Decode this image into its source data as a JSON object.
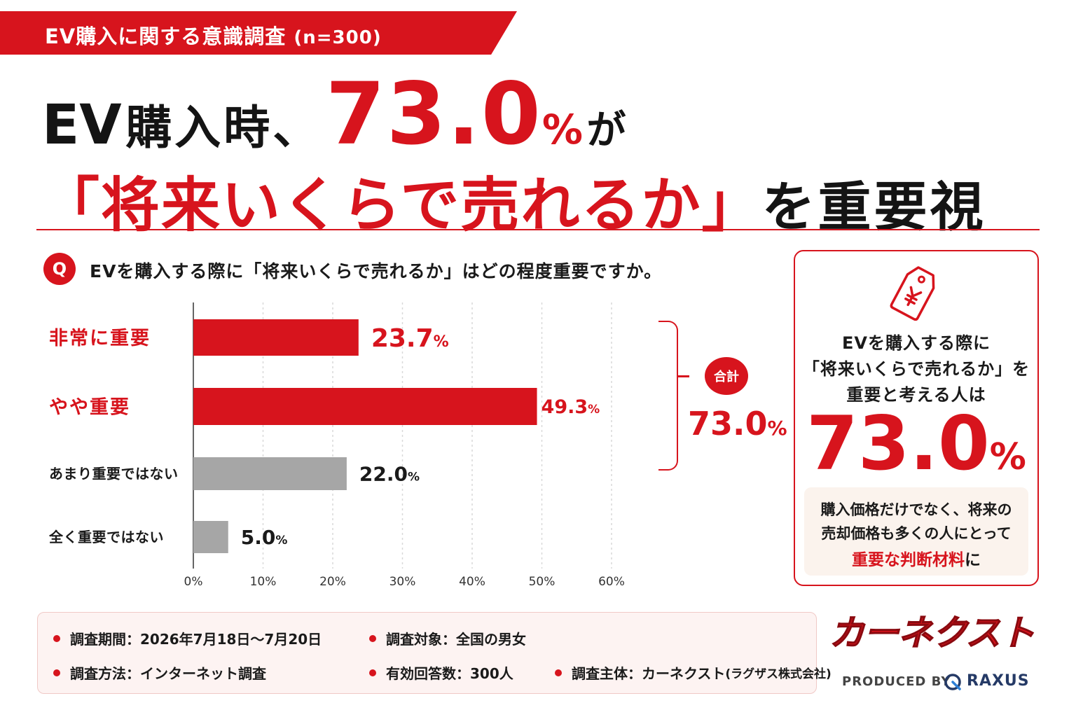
{
  "header": {
    "ribbon_text": "EV購入に関する意識調査",
    "ribbon_n": "(n=300)"
  },
  "headline": {
    "line1_ev": "EV",
    "line1_text": "購入時、",
    "line1_pct_num": "73.0",
    "line1_pct_sym": "%",
    "line1_tail": "が",
    "line2_quote": "「将来いくらで売れるか」",
    "line2_tail": "を重要視"
  },
  "question": {
    "badge": "Q",
    "text": "EVを購入する際に「将来いくらで売れるか」はどの程度重要ですか。"
  },
  "chart_data": {
    "type": "bar",
    "orientation": "horizontal",
    "categories": [
      "非常に重要",
      "やや重要",
      "あまり重要ではない",
      "全く重要ではない"
    ],
    "values": [
      23.7,
      49.3,
      22.0,
      5.0
    ],
    "value_labels": [
      "23.7",
      "49.3",
      "22.0",
      "5.0"
    ],
    "unit": "%",
    "xlim": [
      0,
      60
    ],
    "xticks": [
      "0%",
      "10%",
      "20%",
      "30%",
      "40%",
      "50%",
      "60%"
    ],
    "grid": true,
    "colors": {
      "important": "#d7141d",
      "not_important": "#a6a6a6",
      "label_important": "#d7141d",
      "label_other": "#1a1a1a"
    },
    "highlight": [
      true,
      true,
      false,
      false
    ]
  },
  "total": {
    "badge": "合計",
    "value": "73.0",
    "pct": "%"
  },
  "side_card": {
    "icon": "yen-price-tag-icon",
    "line1": "EVを購入する際に",
    "line2": "「将来いくらで売れるか」を",
    "line3": "重要と考える人は",
    "big_value": "73.0",
    "big_pct": "%",
    "note_line1": "購入価格だけでなく、将来の",
    "note_line2": "売却価格も多くの人にとって",
    "note_emph": "重要な判断材料",
    "note_tail": "に"
  },
  "footer": {
    "period": "調査期間：2026年7月18日〜7月20日",
    "target": "調査対象：全国の男女",
    "method": "調査方法：インターネット調査",
    "responses": "有効回答数：300人",
    "sponsor": "調査主体：カーネクスト",
    "sponsor_paren": "(ラグザス株式会社)"
  },
  "brand": {
    "logo": "カーネクスト",
    "produced_by": "PRODUCED BY",
    "raxus": "RAXUS"
  },
  "colors": {
    "accent": "#d7141d",
    "gray_bar": "#a6a6a6",
    "note_bg": "#fbf3ed",
    "footer_bg": "#fdf3f2"
  }
}
